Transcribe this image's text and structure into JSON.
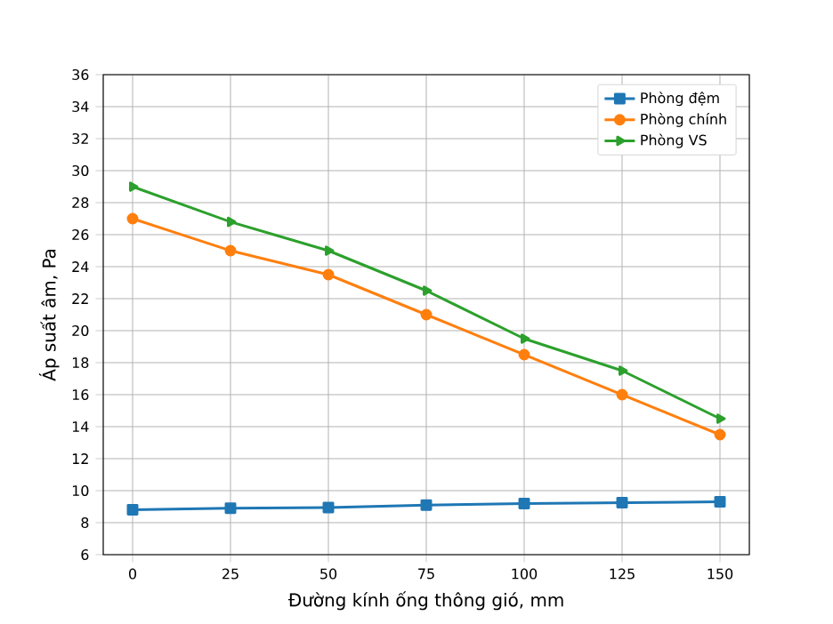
{
  "chart_data": {
    "type": "line",
    "xlabel": "Đường kính ống thông gió, mm",
    "ylabel": "Áp suất âm, Pa",
    "x": [
      0,
      25,
      50,
      75,
      100,
      125,
      150
    ],
    "series": [
      {
        "name": "Phòng đệm",
        "color": "#1f77b4",
        "marker": "square",
        "values": [
          8.8,
          8.9,
          8.95,
          9.1,
          9.2,
          9.25,
          9.3
        ]
      },
      {
        "name": "Phòng chính",
        "color": "#ff7f0e",
        "marker": "circle",
        "values": [
          27,
          25,
          23.5,
          21,
          18.5,
          16,
          13.5
        ]
      },
      {
        "name": "Phòng VS",
        "color": "#2ca02c",
        "marker": "triangle",
        "values": [
          29,
          26.8,
          25,
          22.5,
          19.5,
          17.5,
          14.5
        ]
      }
    ],
    "xlim": [
      -7.5,
      157.5
    ],
    "ylim": [
      6,
      36
    ],
    "xticks": [
      0,
      25,
      50,
      75,
      100,
      125,
      150
    ],
    "yticks": [
      6,
      8,
      10,
      12,
      14,
      16,
      18,
      20,
      22,
      24,
      26,
      28,
      30,
      32,
      34,
      36
    ],
    "grid": true,
    "legend": "top right",
    "line_style": "solid"
  }
}
